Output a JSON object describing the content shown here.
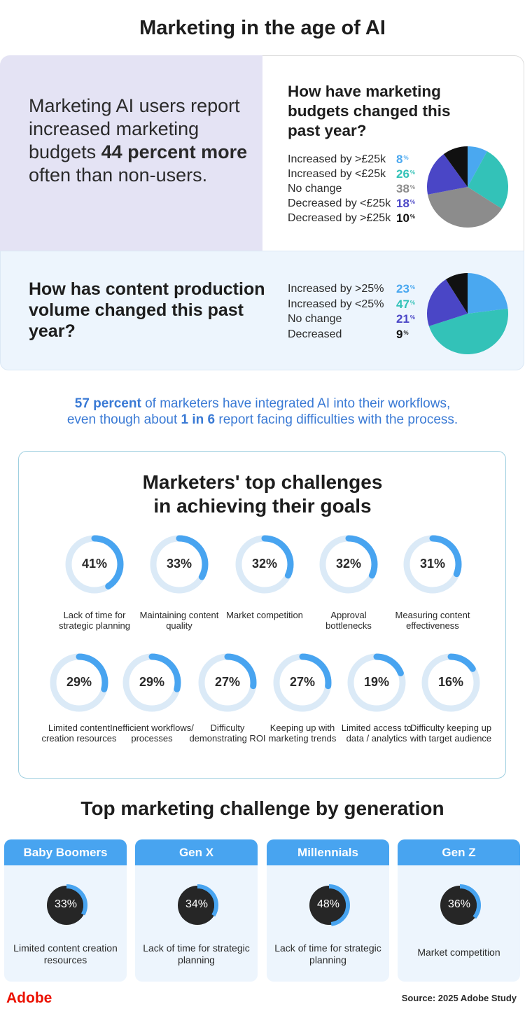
{
  "title": "Marketing in the age of AI",
  "ai_callout": {
    "line_start": "Marketing AI users report increased marketing budgets ",
    "highlight": "44 percent more",
    "line_end": " often than non-users."
  },
  "budget": {
    "question": "How have marketing budgets changed this past year?",
    "percent_sign": "%",
    "rows": [
      {
        "label": "Increased by >£25k",
        "value": "8",
        "color": "#4aa8f0"
      },
      {
        "label": "Increased by <£25k",
        "value": "26",
        "color": "#33c2b8"
      },
      {
        "label": "No change",
        "value": "38",
        "color": "#8c8c8c"
      },
      {
        "label": "Decreased by <£25k",
        "value": "18",
        "color": "#4a46c6"
      },
      {
        "label": "Decreased by >£25k",
        "value": "10",
        "color": "#111111"
      }
    ]
  },
  "content": {
    "question": "How has content production volume changed this past year?",
    "percent_sign": "%",
    "rows": [
      {
        "label": "Increased by >25%",
        "value": "23",
        "color": "#4aa8f0"
      },
      {
        "label": "Increased by <25%",
        "value": "47",
        "color": "#33c2b8"
      },
      {
        "label": "No change",
        "value": "21",
        "color": "#4a46c6"
      },
      {
        "label": "Decreased",
        "value": "9",
        "color": "#111111"
      }
    ]
  },
  "stat": {
    "highlight1": "57 percent",
    "text1": " of marketers have integrated AI into their workflows,",
    "text2": "even though about ",
    "highlight2": "1 in 6",
    "text3": " report facing difficulties with the process."
  },
  "challenges": {
    "title": "Marketers' top challenges in achieving their goals",
    "items": [
      {
        "pct": "41%",
        "value": 41,
        "label": "Lack of time for strategic planning"
      },
      {
        "pct": "33%",
        "value": 33,
        "label": "Maintaining content quality"
      },
      {
        "pct": "32%",
        "value": 32,
        "label": "Market competition"
      },
      {
        "pct": "32%",
        "value": 32,
        "label": "Approval bottlenecks"
      },
      {
        "pct": "31%",
        "value": 31,
        "label": "Measuring content effectiveness"
      },
      {
        "pct": "29%",
        "value": 29,
        "label": "Limited content creation resources"
      },
      {
        "pct": "29%",
        "value": 29,
        "label": "Inefficient workflows/ processes"
      },
      {
        "pct": "27%",
        "value": 27,
        "label": "Difficulty demonstrating ROI"
      },
      {
        "pct": "27%",
        "value": 27,
        "label": "Keeping up with marketing trends"
      },
      {
        "pct": "19%",
        "value": 19,
        "label": "Limited access to data / analytics"
      },
      {
        "pct": "16%",
        "value": 16,
        "label": "Difficulty keeping up with target audience"
      }
    ]
  },
  "generations": {
    "title": "Top marketing challenge by generation",
    "items": [
      {
        "name": "Baby Boomers",
        "pct": "33%",
        "value": 33,
        "label": "Limited content creation resources"
      },
      {
        "name": "Gen X",
        "pct": "34%",
        "value": 34,
        "label": "Lack of time for strategic planning"
      },
      {
        "name": "Millennials",
        "pct": "48%",
        "value": 48,
        "label": "Lack of time for strategic planning"
      },
      {
        "name": "Gen Z",
        "pct": "36%",
        "value": 36,
        "label": "Market competition"
      }
    ]
  },
  "footer": {
    "logo": "Adobe",
    "source": "Source: 2025 Adobe Study"
  },
  "colors": {
    "accent_blue": "#48a4f0",
    "ring_track": "#dbeaf7",
    "highlight_text": "#3a7ad5",
    "brand_red": "#eb1000"
  },
  "chart_data": [
    {
      "type": "pie",
      "title": "How have marketing budgets changed this past year?",
      "categories": [
        "Increased by >£25k",
        "Increased by <£25k",
        "No change",
        "Decreased by <£25k",
        "Decreased by >£25k"
      ],
      "values": [
        8,
        26,
        38,
        18,
        10
      ]
    },
    {
      "type": "pie",
      "title": "How has content production volume changed this past year?",
      "categories": [
        "Increased by >25%",
        "Increased by <25%",
        "No change",
        "Decreased"
      ],
      "values": [
        23,
        47,
        21,
        9
      ]
    },
    {
      "type": "bar",
      "title": "Marketers' top challenges in achieving their goals",
      "categories": [
        "Lack of time for strategic planning",
        "Maintaining content quality",
        "Market competition",
        "Approval bottlenecks",
        "Measuring content effectiveness",
        "Limited content creation resources",
        "Inefficient workflows/ processes",
        "Difficulty demonstrating ROI",
        "Keeping up with marketing trends",
        "Limited access to data / analytics",
        "Difficulty keeping up with target audience"
      ],
      "values": [
        41,
        33,
        32,
        32,
        31,
        29,
        29,
        27,
        27,
        19,
        16
      ]
    },
    {
      "type": "bar",
      "title": "Top marketing challenge by generation",
      "categories": [
        "Baby Boomers",
        "Gen X",
        "Millennials",
        "Gen Z"
      ],
      "values": [
        33,
        34,
        48,
        36
      ]
    }
  ]
}
